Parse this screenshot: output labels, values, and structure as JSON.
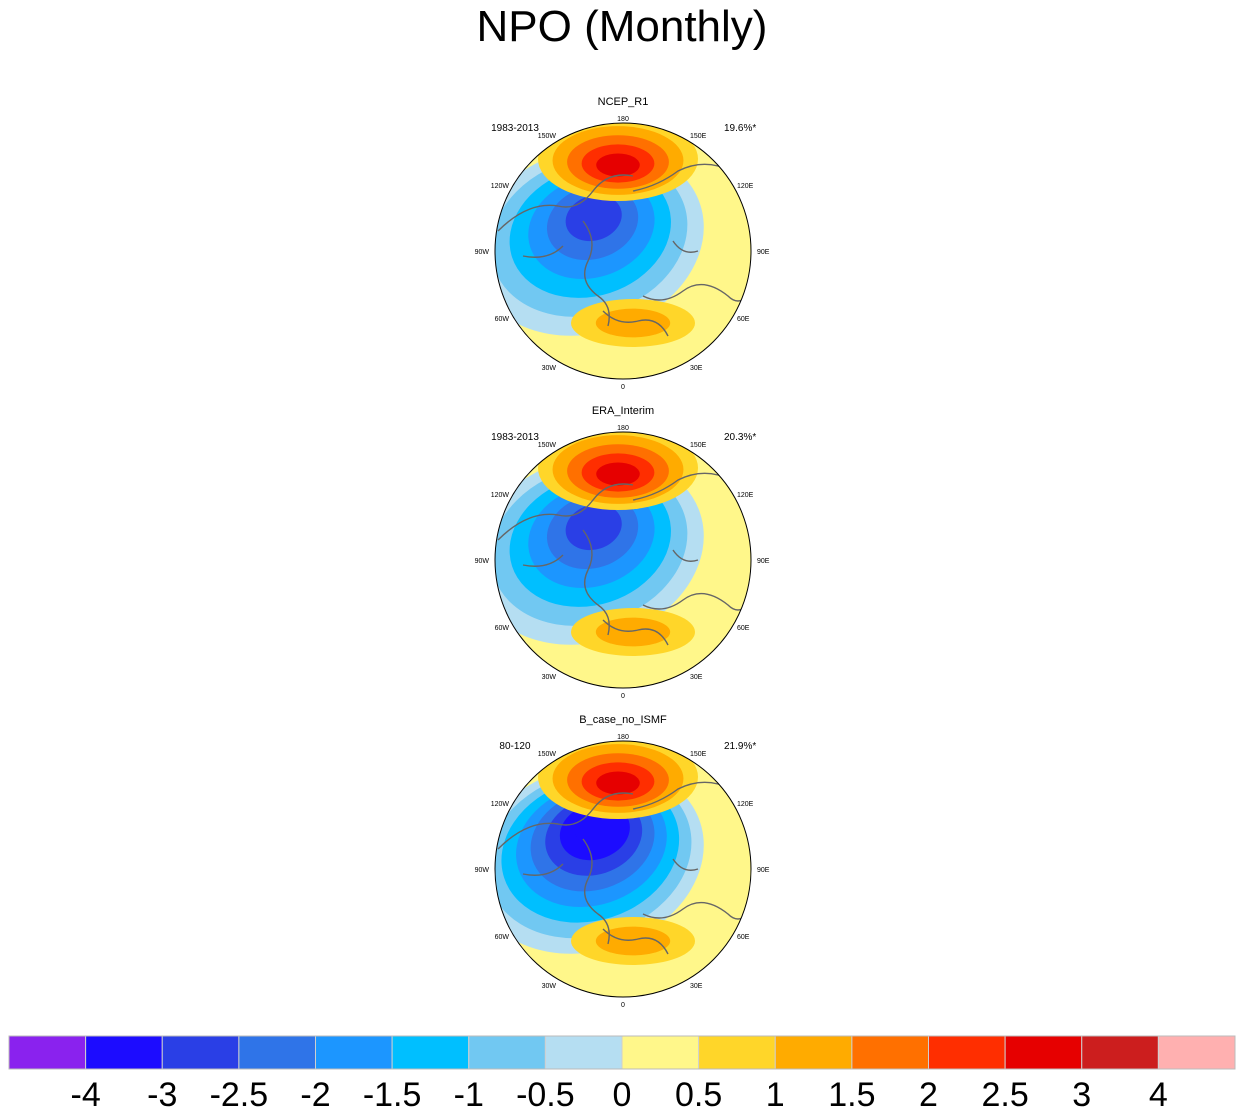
{
  "title": "NPO (Monthly)",
  "chart_data": [
    {
      "type": "polar-contour-map",
      "dataset": "NCEP_R1",
      "period": "1983-2013",
      "variance_explained": "19.6%*",
      "pattern": {
        "pos_center_value": 2.5,
        "neg_center_value": -3,
        "atl_pos_value": 1.5
      }
    },
    {
      "type": "polar-contour-map",
      "dataset": "ERA_Interim",
      "period": "1983-2013",
      "variance_explained": "20.3%*",
      "pattern": {
        "pos_center_value": 2.5,
        "neg_center_value": -3,
        "atl_pos_value": 1.5
      }
    },
    {
      "type": "polar-contour-map",
      "dataset": "B_case_no_ISMF",
      "period": "80-120",
      "variance_explained": "21.9%*",
      "pattern": {
        "pos_center_value": 2.5,
        "neg_center_value": -4,
        "atl_pos_value": 1.5
      }
    }
  ],
  "lon_labels": {
    "top": "180",
    "bottom": "0",
    "left": "90W",
    "right": "90E",
    "upper_left": "120W",
    "upper_right": "120E",
    "top_left": "150W",
    "top_right": "150E",
    "lower_left": "60W",
    "lower_right": "60E",
    "bottom_left": "30W",
    "bottom_right": "30E"
  },
  "colorbar": {
    "colors": [
      "#8a22ee",
      "#1c0cff",
      "#2a3fe6",
      "#2f74e8",
      "#1c96ff",
      "#00bfff",
      "#71c8f2",
      "#b5def2",
      "#fff78a",
      "#ffd629",
      "#ffab00",
      "#ff7000",
      "#ff2e00",
      "#e60000",
      "#cc1e1e",
      "#ffb0b0"
    ],
    "labels": [
      "-4",
      "-3",
      "-2.5",
      "-2",
      "-1.5",
      "-1",
      "-0.5",
      "0",
      "0.5",
      "1",
      "1.5",
      "2",
      "2.5",
      "3",
      "4"
    ]
  }
}
